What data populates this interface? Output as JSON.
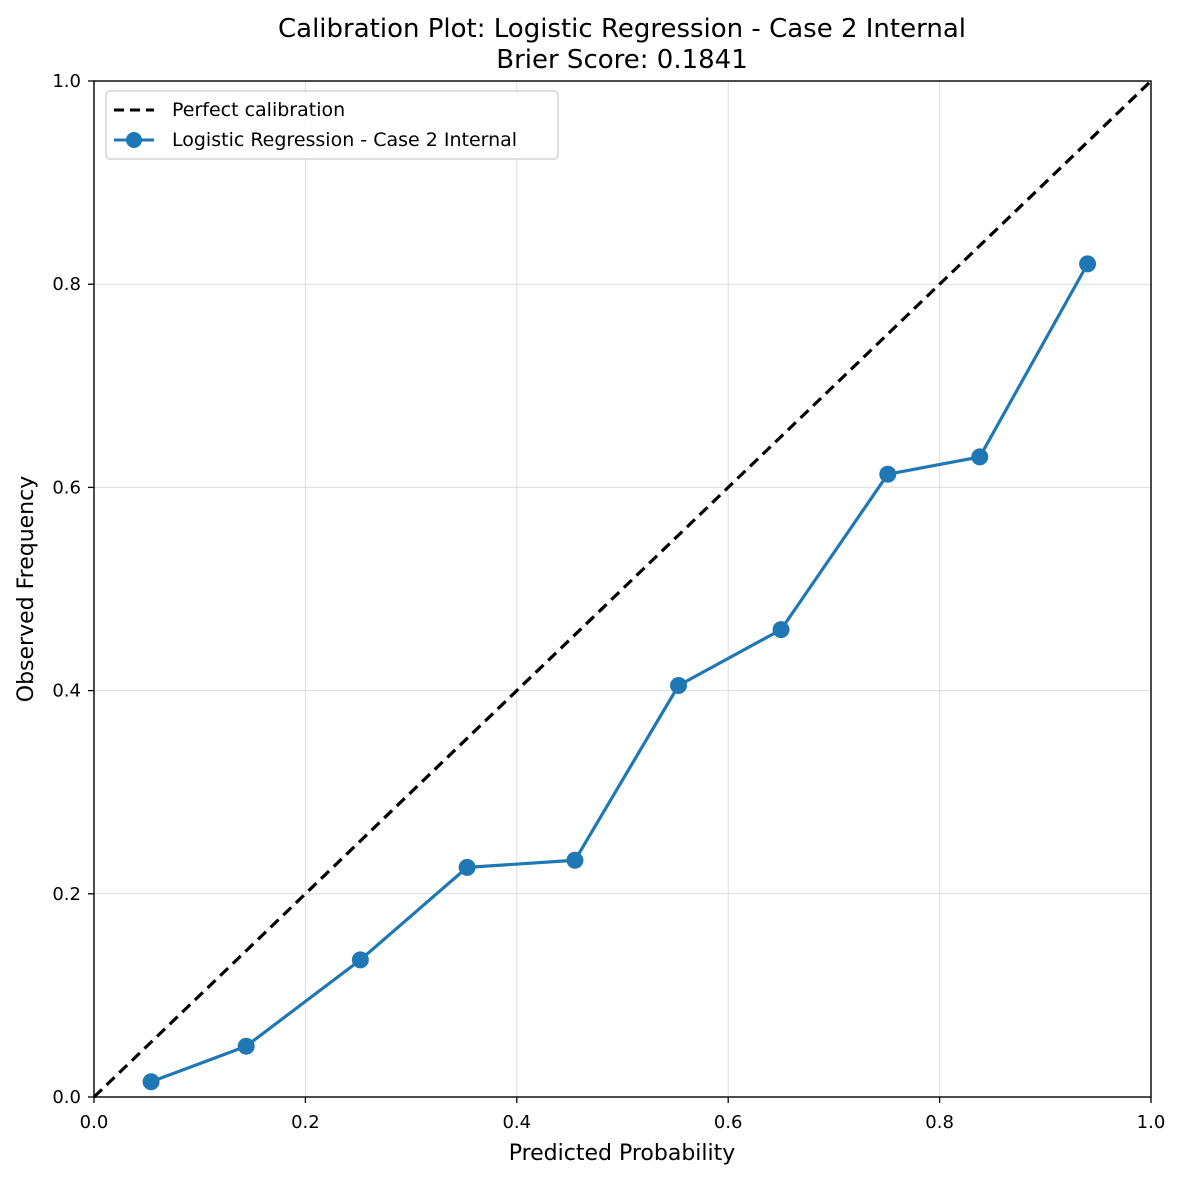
{
  "chart_data": {
    "type": "line",
    "title": "Calibration Plot: Logistic Regression - Case 2 Internal",
    "subtitle": "Brier Score: 0.1841",
    "xlabel": "Predicted Probability",
    "ylabel": "Observed Frequency",
    "xlim": [
      0.0,
      1.0
    ],
    "ylim": [
      0.0,
      1.0
    ],
    "x_ticks": [
      "0.0",
      "0.2",
      "0.4",
      "0.6",
      "0.8",
      "1.0"
    ],
    "y_ticks": [
      "0.0",
      "0.2",
      "0.4",
      "0.6",
      "0.8",
      "1.0"
    ],
    "grid": true,
    "legend_position": "top-left",
    "series": [
      {
        "name": "Perfect calibration",
        "style": "dashed",
        "color": "#000000",
        "x": [
          0.0,
          1.0
        ],
        "y": [
          0.0,
          1.0
        ]
      },
      {
        "name": "Logistic Regression - Case 2 Internal",
        "style": "line-marker",
        "color": "#1f77b4",
        "x": [
          0.054,
          0.144,
          0.252,
          0.353,
          0.455,
          0.553,
          0.65,
          0.751,
          0.838,
          0.94
        ],
        "y": [
          0.015,
          0.05,
          0.135,
          0.226,
          0.233,
          0.405,
          0.46,
          0.613,
          0.63,
          0.82
        ]
      }
    ]
  }
}
